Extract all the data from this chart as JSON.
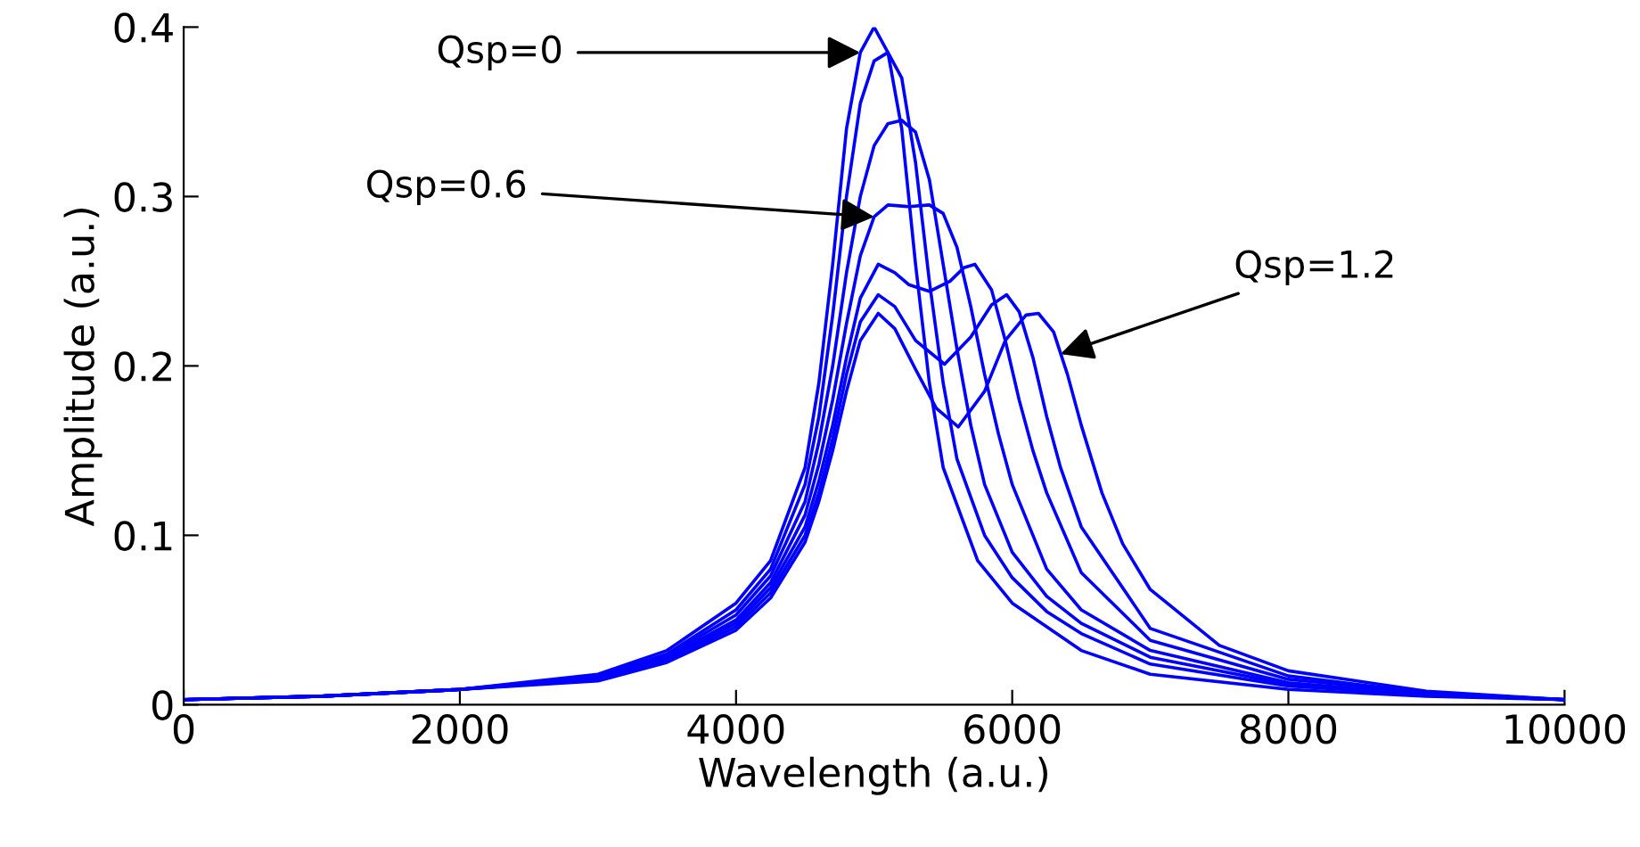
{
  "chart_data": {
    "type": "line",
    "xlabel": "Wavelength (a.u.)",
    "ylabel": "Amplitude (a.u.)",
    "xlim": [
      0,
      10000
    ],
    "ylim": [
      0,
      0.4
    ],
    "xticks": [
      0,
      2000,
      4000,
      6000,
      8000,
      10000
    ],
    "yticks": [
      0,
      0.1,
      0.2,
      0.3,
      0.4
    ],
    "grid": false,
    "marker": "none",
    "line_style": "solid",
    "series": [
      {
        "color": "#0000ff",
        "x": [
          0,
          1000,
          2000,
          3000,
          3500,
          4000,
          4250,
          4500,
          4600,
          4700,
          4800,
          4900,
          5000,
          5100,
          5200,
          5300,
          5400,
          5500,
          5750,
          6000,
          6500,
          7000,
          8000,
          9000,
          10000
        ],
        "values": [
          0.003,
          0.005,
          0.009,
          0.018,
          0.032,
          0.06,
          0.085,
          0.14,
          0.19,
          0.26,
          0.34,
          0.385,
          0.4,
          0.385,
          0.34,
          0.26,
          0.19,
          0.14,
          0.085,
          0.06,
          0.032,
          0.018,
          0.009,
          0.005,
          0.003
        ]
      },
      {
        "color": "#0000ff",
        "x": [
          0,
          1000,
          2000,
          3000,
          3500,
          4000,
          4250,
          4500,
          4600,
          4700,
          4800,
          4900,
          5000,
          5100,
          5200,
          5300,
          5400,
          5500,
          5600,
          5800,
          6000,
          6250,
          6500,
          7000,
          8000,
          9000,
          10000
        ],
        "values": [
          0.003,
          0.005,
          0.009,
          0.017,
          0.03,
          0.056,
          0.08,
          0.13,
          0.17,
          0.23,
          0.3,
          0.355,
          0.38,
          0.385,
          0.37,
          0.32,
          0.25,
          0.19,
          0.145,
          0.1,
          0.075,
          0.055,
          0.042,
          0.024,
          0.011,
          0.006,
          0.003
        ]
      },
      {
        "color": "#0000ff",
        "x": [
          0,
          1000,
          2000,
          3000,
          3500,
          4000,
          4250,
          4500,
          4600,
          4700,
          4800,
          4900,
          5000,
          5100,
          5200,
          5300,
          5400,
          5500,
          5600,
          5700,
          5800,
          6000,
          6250,
          6500,
          7000,
          8000,
          9000,
          10000
        ],
        "values": [
          0.003,
          0.005,
          0.009,
          0.016,
          0.029,
          0.053,
          0.076,
          0.12,
          0.155,
          0.2,
          0.255,
          0.3,
          0.33,
          0.343,
          0.345,
          0.338,
          0.31,
          0.26,
          0.21,
          0.165,
          0.13,
          0.09,
          0.064,
          0.048,
          0.028,
          0.012,
          0.006,
          0.003
        ]
      },
      {
        "color": "#0000ff",
        "x": [
          0,
          1000,
          2000,
          3000,
          3500,
          4000,
          4250,
          4500,
          4600,
          4700,
          4800,
          4900,
          5000,
          5100,
          5250,
          5400,
          5500,
          5600,
          5700,
          5800,
          5900,
          6000,
          6250,
          6500,
          7000,
          8000,
          9000,
          10000
        ],
        "values": [
          0.003,
          0.005,
          0.009,
          0.016,
          0.028,
          0.05,
          0.072,
          0.112,
          0.142,
          0.18,
          0.225,
          0.265,
          0.288,
          0.295,
          0.294,
          0.295,
          0.29,
          0.27,
          0.235,
          0.195,
          0.16,
          0.13,
          0.08,
          0.056,
          0.032,
          0.013,
          0.006,
          0.003
        ]
      },
      {
        "color": "#0000ff",
        "x": [
          0,
          1000,
          2000,
          3000,
          3500,
          4000,
          4250,
          4500,
          4600,
          4700,
          4800,
          4900,
          5030,
          5150,
          5250,
          5400,
          5550,
          5650,
          5730,
          5850,
          5950,
          6050,
          6150,
          6250,
          6500,
          7000,
          8000,
          9000,
          10000
        ],
        "values": [
          0.003,
          0.005,
          0.009,
          0.015,
          0.027,
          0.048,
          0.069,
          0.105,
          0.132,
          0.165,
          0.205,
          0.24,
          0.26,
          0.255,
          0.248,
          0.244,
          0.25,
          0.258,
          0.26,
          0.245,
          0.215,
          0.18,
          0.15,
          0.125,
          0.078,
          0.038,
          0.015,
          0.007,
          0.003
        ]
      },
      {
        "color": "#0000ff",
        "x": [
          0,
          1000,
          2000,
          3000,
          3500,
          4000,
          4250,
          4500,
          4600,
          4700,
          4800,
          4900,
          5030,
          5150,
          5300,
          5510,
          5700,
          5850,
          5960,
          6050,
          6150,
          6250,
          6350,
          6500,
          7000,
          8000,
          9000,
          10000
        ],
        "values": [
          0.003,
          0.005,
          0.009,
          0.015,
          0.026,
          0.046,
          0.066,
          0.1,
          0.125,
          0.157,
          0.195,
          0.226,
          0.242,
          0.235,
          0.215,
          0.201,
          0.217,
          0.236,
          0.242,
          0.232,
          0.205,
          0.17,
          0.14,
          0.105,
          0.045,
          0.017,
          0.007,
          0.003
        ]
      },
      {
        "color": "#0000ff",
        "x": [
          0,
          1000,
          2000,
          3000,
          3500,
          4000,
          4250,
          4500,
          4600,
          4700,
          4800,
          4900,
          5030,
          5150,
          5300,
          5450,
          5610,
          5800,
          5950,
          6100,
          6190,
          6300,
          6400,
          6500,
          6650,
          6800,
          7000,
          7500,
          8000,
          9000,
          10000
        ],
        "values": [
          0.003,
          0.005,
          0.009,
          0.014,
          0.025,
          0.044,
          0.063,
          0.096,
          0.12,
          0.15,
          0.185,
          0.215,
          0.231,
          0.222,
          0.198,
          0.175,
          0.164,
          0.185,
          0.215,
          0.23,
          0.231,
          0.22,
          0.195,
          0.165,
          0.125,
          0.095,
          0.068,
          0.035,
          0.02,
          0.008,
          0.003
        ]
      }
    ],
    "annotations": [
      {
        "text": "Qsp=0",
        "x": 4900,
        "y": 0.385
      },
      {
        "text": "Qsp=0.6",
        "x": 5000,
        "y": 0.288
      },
      {
        "text": "Qsp=1.2",
        "x": 6350,
        "y": 0.207
      }
    ]
  }
}
